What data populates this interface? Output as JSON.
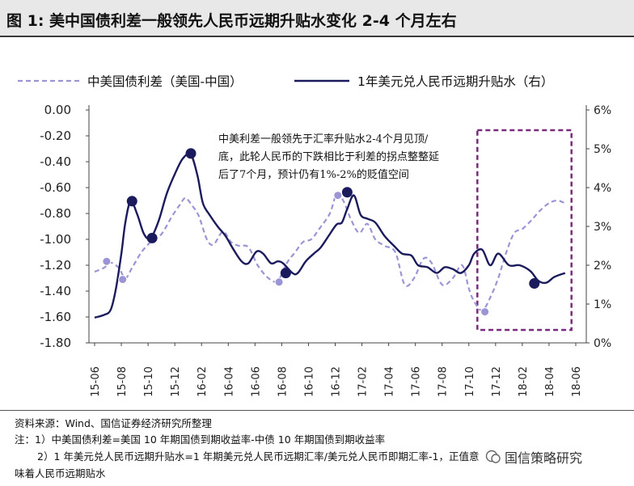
{
  "title": "图  1:  美中国债利差一般领先人民币远期升贴水变化 2-4 个月左右",
  "chart_data": {
    "type": "line",
    "legend": {
      "position": "top",
      "items": [
        "中美国债利差（美国-中国）",
        "1年美元兑人民币远期升贴水（右）"
      ]
    },
    "x_ticks": [
      "15-06",
      "15-08",
      "15-10",
      "15-12",
      "16-02",
      "16-04",
      "16-06",
      "16-08",
      "16-10",
      "16-12",
      "17-02",
      "17-04",
      "17-06",
      "17-08",
      "17-10",
      "17-12",
      "18-02",
      "18-04",
      "18-06"
    ],
    "y_left": {
      "ticks": [
        "0.00",
        "-0.20",
        "-0.40",
        "-0.60",
        "-0.80",
        "-1.00",
        "-1.20",
        "-1.40",
        "-1.60",
        "-1.80"
      ],
      "range": [
        -1.8,
        0.0
      ]
    },
    "y_right": {
      "ticks": [
        "6%",
        "5%",
        "4%",
        "3%",
        "2%",
        "1%",
        "0%"
      ],
      "range": [
        0,
        6
      ]
    },
    "grid": false,
    "series": [
      {
        "name": "中美国债利差（美国-中国）",
        "axis": "left",
        "color": "#9b95d6",
        "style": "dashed",
        "points": [
          [
            0,
            -1.25
          ],
          [
            0.35,
            -1.22
          ],
          [
            0.6,
            -1.18
          ],
          [
            0.9,
            -1.22
          ],
          [
            1.15,
            -1.3
          ],
          [
            1.4,
            -1.22
          ],
          [
            1.75,
            -1.1
          ],
          [
            2.1,
            -1.02
          ],
          [
            2.5,
            -0.96
          ],
          [
            2.9,
            -0.82
          ],
          [
            3.2,
            -0.73
          ],
          [
            3.4,
            -0.68
          ],
          [
            3.65,
            -0.74
          ],
          [
            3.9,
            -0.82
          ],
          [
            4.2,
            -1.0
          ],
          [
            4.45,
            -1.04
          ],
          [
            4.8,
            -0.94
          ],
          [
            5.1,
            -1.02
          ],
          [
            5.4,
            -1.05
          ],
          [
            5.75,
            -1.06
          ],
          [
            6.1,
            -1.2
          ],
          [
            6.5,
            -1.3
          ],
          [
            6.85,
            -1.32
          ],
          [
            7.2,
            -1.18
          ],
          [
            7.5,
            -1.1
          ],
          [
            7.8,
            -1.02
          ],
          [
            8.1,
            -1.0
          ],
          [
            8.4,
            -0.92
          ],
          [
            8.8,
            -0.8
          ],
          [
            9.05,
            -0.65
          ],
          [
            9.3,
            -0.7
          ],
          [
            9.6,
            -0.85
          ],
          [
            9.9,
            -0.95
          ],
          [
            10.2,
            -0.88
          ],
          [
            10.5,
            -1.0
          ],
          [
            10.85,
            -1.05
          ],
          [
            11.25,
            -1.1
          ],
          [
            11.6,
            -1.35
          ],
          [
            11.95,
            -1.3
          ],
          [
            12.3,
            -1.15
          ],
          [
            12.6,
            -1.18
          ],
          [
            13.0,
            -1.35
          ],
          [
            13.4,
            -1.3
          ],
          [
            13.75,
            -1.2
          ],
          [
            14.0,
            -1.38
          ],
          [
            14.2,
            -1.48
          ],
          [
            14.5,
            -1.55
          ],
          [
            14.8,
            -1.45
          ],
          [
            15.1,
            -1.3
          ],
          [
            15.4,
            -1.1
          ],
          [
            15.7,
            -0.95
          ],
          [
            16.0,
            -0.92
          ],
          [
            16.35,
            -0.85
          ],
          [
            16.65,
            -0.78
          ],
          [
            17.0,
            -0.72
          ],
          [
            17.3,
            -0.7
          ],
          [
            17.6,
            -0.72
          ]
        ],
        "markers": [
          [
            0.45,
            -1.17
          ],
          [
            1.05,
            -1.31
          ],
          [
            9.1,
            -0.66
          ],
          [
            6.9,
            -1.33
          ],
          [
            14.6,
            -1.56
          ]
        ]
      },
      {
        "name": "1年美元兑人民币远期升贴水（右）",
        "axis": "right",
        "color": "#1a1a5c",
        "style": "solid",
        "points": [
          [
            0,
            0.65
          ],
          [
            0.35,
            0.72
          ],
          [
            0.6,
            0.85
          ],
          [
            0.8,
            1.4
          ],
          [
            1.0,
            2.3
          ],
          [
            1.15,
            3.1
          ],
          [
            1.35,
            3.65
          ],
          [
            1.6,
            3.3
          ],
          [
            1.85,
            2.8
          ],
          [
            2.1,
            2.7
          ],
          [
            2.4,
            3.15
          ],
          [
            2.7,
            3.85
          ],
          [
            3.0,
            4.35
          ],
          [
            3.3,
            4.75
          ],
          [
            3.6,
            4.85
          ],
          [
            3.85,
            4.3
          ],
          [
            4.05,
            3.6
          ],
          [
            4.3,
            3.3
          ],
          [
            4.6,
            3.0
          ],
          [
            4.9,
            2.75
          ],
          [
            5.2,
            2.4
          ],
          [
            5.5,
            2.1
          ],
          [
            5.75,
            2.05
          ],
          [
            6.05,
            2.35
          ],
          [
            6.3,
            2.3
          ],
          [
            6.6,
            2.05
          ],
          [
            6.85,
            2.1
          ],
          [
            7.05,
            2.05
          ],
          [
            7.4,
            1.8
          ],
          [
            7.6,
            1.8
          ],
          [
            7.9,
            2.1
          ],
          [
            8.2,
            2.3
          ],
          [
            8.45,
            2.45
          ],
          [
            8.75,
            2.75
          ],
          [
            9.05,
            3.05
          ],
          [
            9.25,
            3.1
          ],
          [
            9.45,
            3.45
          ],
          [
            9.7,
            3.8
          ],
          [
            9.95,
            3.3
          ],
          [
            10.2,
            3.2
          ],
          [
            10.5,
            3.1
          ],
          [
            10.85,
            2.75
          ],
          [
            11.2,
            2.5
          ],
          [
            11.5,
            2.3
          ],
          [
            11.85,
            2.25
          ],
          [
            12.1,
            2.0
          ],
          [
            12.45,
            1.95
          ],
          [
            12.8,
            1.8
          ],
          [
            13.1,
            1.95
          ],
          [
            13.4,
            1.9
          ],
          [
            13.7,
            1.8
          ],
          [
            14.0,
            2.0
          ],
          [
            14.2,
            2.3
          ],
          [
            14.5,
            2.4
          ],
          [
            14.8,
            2.0
          ],
          [
            15.1,
            2.3
          ],
          [
            15.5,
            2.0
          ],
          [
            15.9,
            2.0
          ],
          [
            16.3,
            1.85
          ],
          [
            16.6,
            1.6
          ],
          [
            16.9,
            1.55
          ],
          [
            17.2,
            1.7
          ],
          [
            17.6,
            1.8
          ]
        ],
        "markers": [
          [
            1.4,
            3.65
          ],
          [
            2.15,
            2.7
          ],
          [
            3.6,
            4.88
          ],
          [
            7.15,
            1.8
          ],
          [
            9.45,
            3.88
          ],
          [
            16.45,
            1.53
          ]
        ]
      }
    ],
    "annotation": {
      "lines": [
        "中美利差一般领先于汇率升贴水2-4个月见顶/",
        "底，此轮人民币的下跌相比于利差的拐点整整延",
        "后了7个月，预计仍有1%-2%的贬值空间"
      ],
      "highlight_box": {
        "x_from": 14.5,
        "x_to": 17.9
      }
    }
  },
  "footer": {
    "source": "资料来源：Wind、国信证券经济研究所整理",
    "note1": "注：1）中美国债利差=美国 10 年期国债到期收益率-中债 10 年期国债到期收益率",
    "note2": "2）1 年美元兑人民币远期升贴水=1 年期美元兑人民币远期汇率/美元兑人民币即期汇率-1，正值意",
    "note3": "味着人民币远期贴水"
  },
  "watermark": "国信策略研究"
}
